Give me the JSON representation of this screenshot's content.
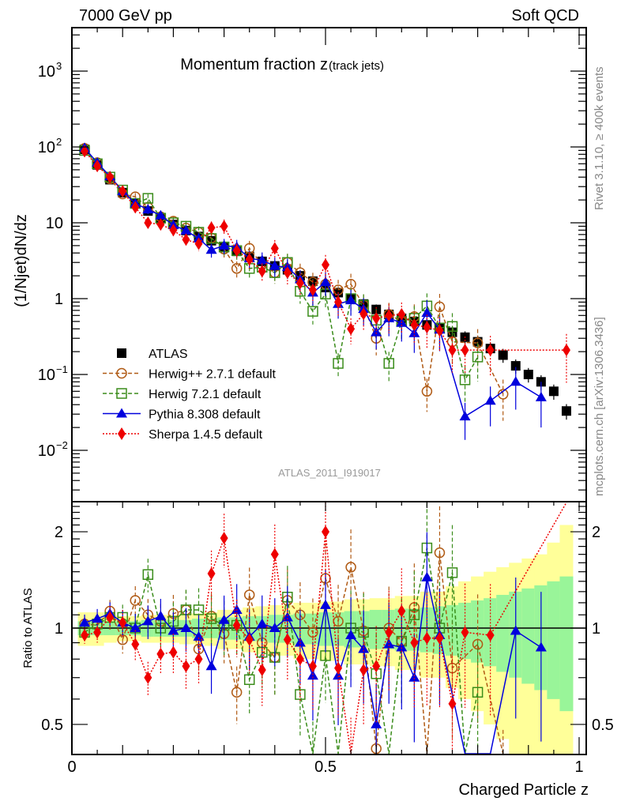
{
  "header": {
    "left": "7000 GeV pp",
    "right": "Soft QCD"
  },
  "side_labels": {
    "rivet": "Rivet 3.1.10, ≥ 400k events",
    "mcplots": "mcplots.cern.ch [arXiv:1306.3436]"
  },
  "chart_data": [
    {
      "panel": "main",
      "type": "scatter",
      "title_main": "Momentum fraction z",
      "title_sub": "(track jets)",
      "watermark": "ATLAS_2011_I919017",
      "xlabel": "Charged Particle z",
      "ylabel": "(1/Njet)dN/dz",
      "yscale": "log",
      "xlim": [
        0,
        1.014
      ],
      "ylim": [
        0.0022,
        4000
      ],
      "ytick_labels": [
        {
          "value": 0.01,
          "base": "10",
          "exp": "−2"
        },
        {
          "value": 0.1,
          "base": "10",
          "exp": "−1"
        },
        {
          "value": 1,
          "base": "1",
          "exp": ""
        },
        {
          "value": 10,
          "base": "10",
          "exp": ""
        },
        {
          "value": 100,
          "base": "10",
          "exp": "2"
        },
        {
          "value": 1000,
          "base": "10",
          "exp": "3"
        }
      ],
      "legend_position": "bottom-left",
      "x": [
        0.025,
        0.05,
        0.075,
        0.1,
        0.125,
        0.15,
        0.175,
        0.2,
        0.225,
        0.25,
        0.275,
        0.3,
        0.325,
        0.35,
        0.375,
        0.4,
        0.425,
        0.45,
        0.475,
        0.5,
        0.525,
        0.55,
        0.575,
        0.6,
        0.625,
        0.65,
        0.675,
        0.7,
        0.725,
        0.75,
        0.775,
        0.8,
        0.825,
        0.85,
        0.875,
        0.9,
        0.925,
        0.95,
        0.975
      ],
      "series": [
        {
          "name": "ATLAS",
          "color": "#000000",
          "marker": "square-filled",
          "line": "none",
          "values": [
            93,
            58,
            37,
            25,
            18,
            14.3,
            11.5,
            9.5,
            7.9,
            6.6,
            5.8,
            4.7,
            4.2,
            3.6,
            3.1,
            2.7,
            2.4,
            2.0,
            1.7,
            1.4,
            1.2,
            1.0,
            0.85,
            0.72,
            0.62,
            0.55,
            0.5,
            0.45,
            0.41,
            0.36,
            0.31,
            0.27,
            0.22,
            0.18,
            0.13,
            0.1,
            0.08,
            0.06,
            0.033
          ]
        },
        {
          "name": "Herwig++ 2.7.1 default",
          "color": "#b05a14",
          "marker": "circle-open",
          "line": "dashed",
          "values": [
            96,
            62,
            38,
            24,
            22,
            16,
            12,
            10.5,
            8.5,
            7.5,
            6.3,
            4.5,
            2.5,
            4.6,
            2.8,
            2.2,
            3.0,
            2.2,
            1.65,
            1.55,
            1.3,
            1.55,
            0.82,
            0.3,
            0.62,
            0.5,
            0.58,
            0.06,
            0.78,
            0.27,
            null,
            0.26,
            null,
            0.055,
            null,
            null,
            null,
            null,
            null
          ]
        },
        {
          "name": "Herwig 7.2.1 default",
          "color": "#3a8c1a",
          "marker": "square-open",
          "line": "dashed",
          "values": [
            90,
            60,
            40,
            27,
            18,
            21,
            11.5,
            10,
            9,
            7.5,
            6.2,
            4.8,
            4.3,
            2.5,
            2.6,
            2.2,
            3.0,
            1.25,
            0.68,
            1.15,
            0.14,
            1.0,
            0.82,
            0.52,
            0.14,
            0.5,
            0.55,
            0.8,
            0.41,
            0.43,
            0.085,
            0.17,
            null,
            null,
            null,
            null,
            null,
            null,
            null
          ]
        },
        {
          "name": "Pythia 8.308 default",
          "color": "#0000dd",
          "marker": "triangle-filled",
          "line": "solid",
          "values": [
            97,
            62,
            41,
            26,
            18,
            15,
            12.5,
            9.3,
            7.9,
            6.2,
            4.4,
            5.0,
            4.8,
            3.4,
            3.2,
            2.7,
            2.6,
            1.8,
            1.2,
            1.65,
            0.85,
            0.95,
            0.73,
            0.36,
            0.55,
            0.48,
            0.35,
            0.65,
            0.39,
            null,
            0.028,
            null,
            0.045,
            null,
            0.08,
            null,
            0.05,
            null,
            null
          ]
        },
        {
          "name": "Sherpa 1.4.5 default",
          "color": "#ee0000",
          "marker": "diamond-filled",
          "line": "dotted",
          "values": [
            88,
            56,
            40,
            26,
            16,
            10,
            9.5,
            8.0,
            6.0,
            5.3,
            8.6,
            9.0,
            4.3,
            3.3,
            2.3,
            4.6,
            2.2,
            1.6,
            1.3,
            2.8,
            0.9,
            0.4,
            0.63,
            0.55,
            0.6,
            0.62,
            0.45,
            0.42,
            0.38,
            0.21,
            0.21,
            null,
            0.21,
            null,
            null,
            null,
            null,
            null,
            0.21
          ]
        }
      ]
    },
    {
      "panel": "ratio",
      "type": "scatter",
      "ylabel": "Ratio to ATLAS",
      "xlabel": "Charged Particle z",
      "yscale": "log",
      "ylim": [
        0.34,
        2.5
      ],
      "xtick_labels": [
        "0",
        "0.5",
        "1"
      ],
      "ytick_labels": [
        "0.5",
        "1",
        "2"
      ],
      "band_inner_half_width": [
        0.05,
        0.05,
        0.05,
        0.05,
        0.05,
        0.06,
        0.06,
        0.06,
        0.06,
        0.07,
        0.07,
        0.08,
        0.08,
        0.09,
        0.09,
        0.1,
        0.1,
        0.11,
        0.11,
        0.12,
        0.12,
        0.13,
        0.13,
        0.14,
        0.14,
        0.15,
        0.15,
        0.16,
        0.17,
        0.18,
        0.2,
        0.22,
        0.24,
        0.27,
        0.3,
        0.33,
        0.36,
        0.4,
        0.45
      ],
      "band_outer_half_width": [
        0.12,
        0.12,
        0.1,
        0.09,
        0.09,
        0.1,
        0.1,
        0.1,
        0.11,
        0.11,
        0.12,
        0.14,
        0.14,
        0.16,
        0.17,
        0.18,
        0.18,
        0.2,
        0.2,
        0.21,
        0.21,
        0.23,
        0.23,
        0.24,
        0.24,
        0.26,
        0.26,
        0.3,
        0.3,
        0.35,
        0.4,
        0.45,
        0.5,
        0.55,
        0.6,
        0.65,
        0.7,
        0.85,
        1.1
      ],
      "series": [
        {
          "name": "Herwig++ 2.7.1 default",
          "values": [
            1.03,
            1.02,
            1.13,
            0.92,
            1.22,
            1.1,
            1.05,
            1.11,
            1.14,
            0.86,
            1.09,
            0.96,
            0.63,
            1.27,
            0.9,
            0.81,
            1.22,
            1.1,
            0.97,
            1.43,
            1.05,
            1.55,
            0.98,
            0.42,
            1.0,
            0.91,
            1.16,
            0.12,
            1.72,
            0.75,
            null,
            0.89,
            null,
            0.33,
            null,
            null,
            null,
            null,
            null
          ]
        },
        {
          "name": "Herwig 7.2.1 default",
          "values": [
            0.97,
            1.03,
            1.08,
            1.08,
            1.0,
            1.47,
            1.0,
            1.05,
            1.14,
            1.14,
            1.07,
            1.02,
            1.02,
            0.69,
            0.84,
            0.81,
            1.25,
            0.62,
            0.4,
            0.82,
            0.12,
            1.0,
            0.97,
            0.72,
            0.23,
            0.91,
            1.1,
            1.78,
            1.0,
            1.49,
            0.27,
            0.63,
            null,
            null,
            null,
            null,
            null,
            null,
            null
          ]
        },
        {
          "name": "Pythia 8.308 default",
          "values": [
            1.04,
            1.07,
            1.11,
            1.04,
            1.0,
            1.05,
            1.09,
            0.98,
            1.0,
            0.94,
            0.76,
            1.06,
            1.14,
            0.94,
            1.03,
            1.0,
            1.08,
            0.9,
            0.71,
            1.18,
            0.71,
            0.95,
            0.86,
            0.5,
            0.89,
            0.87,
            0.7,
            1.44,
            0.95,
            null,
            0.09,
            null,
            0.2,
            null,
            0.98,
            null,
            0.87,
            null,
            null
          ]
        },
        {
          "name": "Sherpa 1.4.5 default",
          "values": [
            0.95,
            0.97,
            1.08,
            1.04,
            0.89,
            0.7,
            0.83,
            0.84,
            0.76,
            0.8,
            1.48,
            1.91,
            1.02,
            0.92,
            0.74,
            1.7,
            0.92,
            0.8,
            0.76,
            2.0,
            0.75,
            0.4,
            0.74,
            0.76,
            0.97,
            1.13,
            0.9,
            0.93,
            0.93,
            0.58,
            0.97,
            null,
            0.95,
            null,
            null,
            null,
            null,
            null,
            6.3
          ]
        }
      ]
    }
  ],
  "legend": [
    {
      "label": "ATLAS"
    },
    {
      "label": "Herwig++ 2.7.1 default"
    },
    {
      "label": "Herwig 7.2.1 default"
    },
    {
      "label": "Pythia 8.308 default"
    },
    {
      "label": "Sherpa 1.4.5 default"
    }
  ]
}
